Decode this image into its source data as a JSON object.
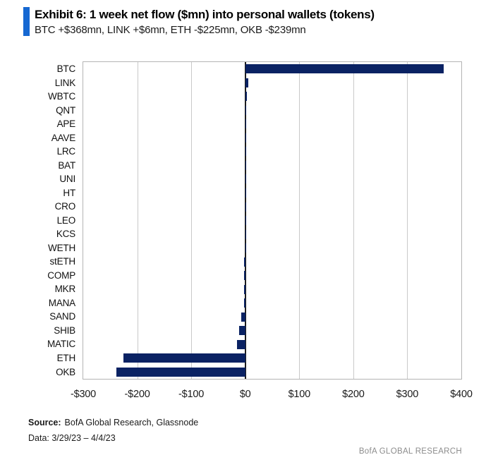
{
  "header": {
    "title": "Exhibit 6: 1 week net flow ($mn) into personal wallets (tokens)",
    "subtitle": "BTC +$368mn, LINK +$6mn, ETH -$225mn, OKB -$239mn",
    "accent_color": "#1668d2"
  },
  "chart_data": {
    "type": "bar",
    "orientation": "horizontal",
    "title": "1 week net flow ($mn) into personal wallets (tokens)",
    "categories": [
      "BTC",
      "LINK",
      "WBTC",
      "QNT",
      "APE",
      "AAVE",
      "LRC",
      "BAT",
      "UNI",
      "HT",
      "CRO",
      "LEO",
      "KCS",
      "WETH",
      "stETH",
      "COMP",
      "MKR",
      "MANA",
      "SAND",
      "SHIB",
      "MATIC",
      "ETH",
      "OKB"
    ],
    "values": [
      368,
      6,
      3,
      2,
      2,
      2,
      2,
      2,
      2,
      2,
      2,
      2,
      2,
      1,
      -1,
      -1,
      -1,
      -2,
      -7,
      -12,
      -15,
      -225,
      -239
    ],
    "xlim": [
      -300,
      400
    ],
    "x_ticks": [
      {
        "value": -300,
        "label": "-$300"
      },
      {
        "value": -200,
        "label": "-$200"
      },
      {
        "value": -100,
        "label": "-$100"
      },
      {
        "value": 0,
        "label": "$0"
      },
      {
        "value": 100,
        "label": "$100"
      },
      {
        "value": 200,
        "label": "$200"
      },
      {
        "value": 300,
        "label": "$300"
      },
      {
        "value": 400,
        "label": "$400"
      }
    ],
    "grid": true,
    "legend": false,
    "bar_color": "#0a2263",
    "gridline_color": "#c9c9c9",
    "zero_line_color": "#1d1d1d"
  },
  "footer": {
    "source_label": "Source:",
    "source_text": "BofA Global Research, Glassnode",
    "data_range": "Data: 3/29/23 – 4/4/23",
    "brand": "BofA GLOBAL RESEARCH"
  }
}
